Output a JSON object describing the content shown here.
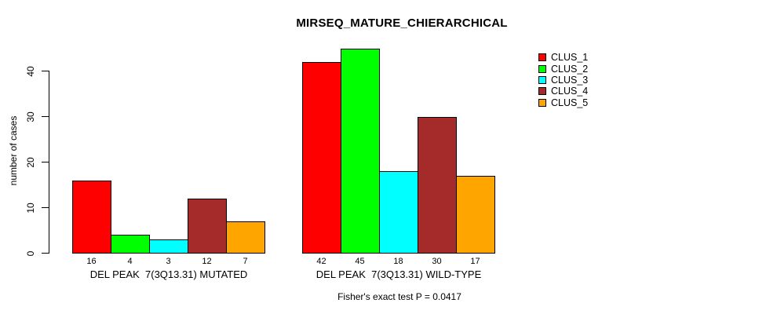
{
  "chart_data": {
    "type": "bar",
    "title": "MIRSEQ_MATURE_CHIERARCHICAL",
    "ylabel": "number of cases",
    "xlabel": "",
    "subtitle": "Fisher's exact test P = 0.0417",
    "categories": [
      "DEL PEAK  7(3Q13.31) MUTATED",
      "DEL PEAK  7(3Q13.31) WILD-TYPE"
    ],
    "series": [
      {
        "name": "CLUS_1",
        "color": "#ff0000",
        "values": [
          16,
          42
        ]
      },
      {
        "name": "CLUS_2",
        "color": "#00ff00",
        "values": [
          4,
          45
        ]
      },
      {
        "name": "CLUS_3",
        "color": "#00ffff",
        "values": [
          3,
          18
        ]
      },
      {
        "name": "CLUS_4",
        "color": "#a52a2a",
        "values": [
          12,
          30
        ]
      },
      {
        "name": "CLUS_5",
        "color": "#ffa500",
        "values": [
          7,
          17
        ]
      }
    ],
    "bar_value_labels": [
      [
        16,
        4,
        3,
        12,
        7
      ],
      [
        42,
        45,
        18,
        30,
        17
      ]
    ],
    "yticks": [
      0,
      10,
      20,
      30,
      40
    ],
    "ylim": [
      0,
      46
    ],
    "grid": false,
    "legend_position": "top-right",
    "legend_entries": [
      "CLUS_1",
      "CLUS_2",
      "CLUS_3",
      "CLUS_4",
      "CLUS_5"
    ]
  }
}
